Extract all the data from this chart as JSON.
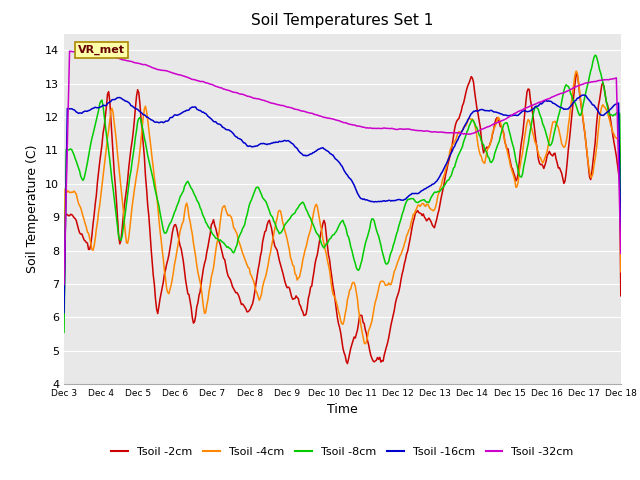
{
  "title": "Soil Temperatures Set 1",
  "xlabel": "Time",
  "ylabel": "Soil Temperature (C)",
  "ylim": [
    4.0,
    14.5
  ],
  "yticks": [
    4.0,
    5.0,
    6.0,
    7.0,
    8.0,
    9.0,
    10.0,
    11.0,
    12.0,
    13.0,
    14.0
  ],
  "bg_color": "#e8e8e8",
  "fig_bg": "#ffffff",
  "series_colors": {
    "Tsoil -2cm": "#cc0000",
    "Tsoil -4cm": "#ff8800",
    "Tsoil -8cm": "#00cc00",
    "Tsoil -16cm": "#0000cc",
    "Tsoil -32cm": "#cc00cc"
  },
  "annotation_text": "VR_met",
  "n_points": 500,
  "x_tick_labels": [
    "Dec 3",
    "Dec 4",
    "Dec 5",
    "Dec 6",
    "Dec 7",
    "Dec 8",
    "Dec 9",
    "Dec 10",
    "Dec 11",
    "Dec 12",
    "Dec 13",
    "Dec 14",
    "Dec 15",
    "Dec 16",
    "Dec 17",
    "Dec 18"
  ],
  "legend_labels": [
    "Tsoil -2cm",
    "Tsoil -4cm",
    "Tsoil -8cm",
    "Tsoil -16cm",
    "Tsoil -32cm"
  ]
}
